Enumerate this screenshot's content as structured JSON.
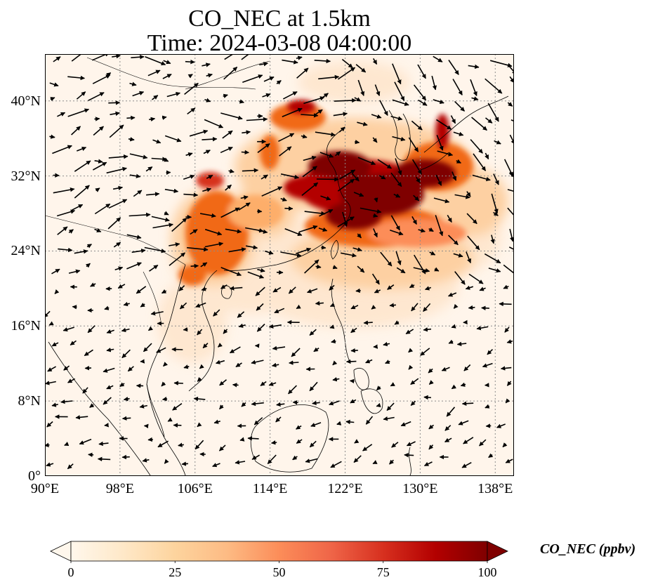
{
  "figure": {
    "title_line1": "CO_NEC at 1.5km",
    "title_line2": "Time: 2024-03-08 04:00:00"
  },
  "map": {
    "region": "East and Southeast Asia",
    "lon_range": [
      90,
      140
    ],
    "lat_range": [
      0,
      45
    ],
    "gridlines": true,
    "gridline_style": "dotted",
    "lon_ticks": [
      "90°E",
      "98°E",
      "106°E",
      "114°E",
      "122°E",
      "130°E",
      "138°E"
    ],
    "lat_ticks": [
      "0°",
      "8°N",
      "16°N",
      "24°N",
      "32°N",
      "40°N"
    ],
    "field_variable": "CO_NEC",
    "overlay": "wind vectors (black arrows)",
    "colors": {
      "background_low": "#fff5eb",
      "mid_light": "#fdd0a2",
      "mid": "#f16913",
      "high": "#d94801",
      "max": "#7f0000",
      "coastline": "#000000",
      "grid": "#8c8c8c"
    }
  },
  "colorbar": {
    "label": "CO_NEC (ppbv)",
    "ticks": [
      "0",
      "25",
      "50",
      "75",
      "100"
    ],
    "range": [
      0,
      100
    ],
    "colormap": "OrRd",
    "extend": "both"
  }
}
